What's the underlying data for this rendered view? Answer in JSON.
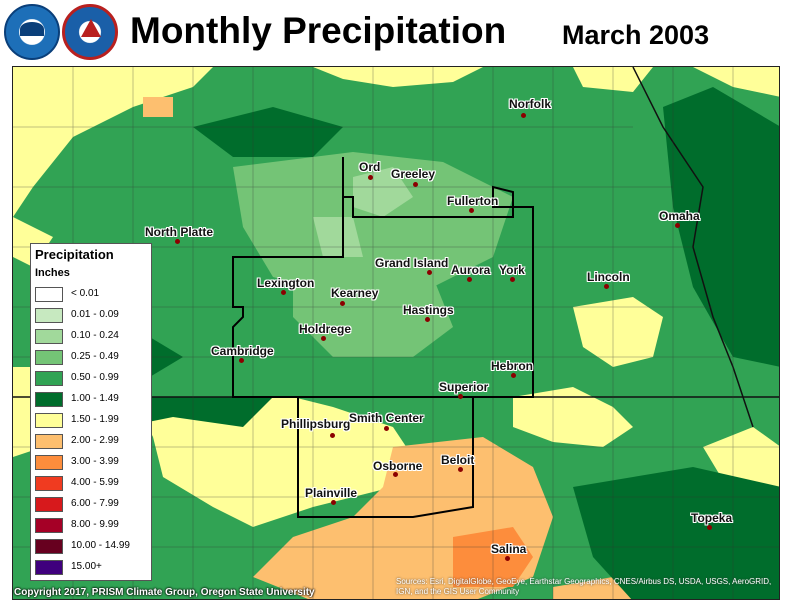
{
  "header": {
    "title": "Monthly Precipitation",
    "date": "March 2003"
  },
  "logos": [
    "noaa-logo",
    "nws-logo"
  ],
  "legend": {
    "title": "Precipitation",
    "unit": "Inches",
    "items": [
      {
        "label": "< 0.01",
        "color": "#ffffff"
      },
      {
        "label": "0.01 - 0.09",
        "color": "#c7e9c0"
      },
      {
        "label": "0.10 - 0.24",
        "color": "#a1d99b"
      },
      {
        "label": "0.25 - 0.49",
        "color": "#74c476"
      },
      {
        "label": "0.50 - 0.99",
        "color": "#31a354"
      },
      {
        "label": "1.00 - 1.49",
        "color": "#006d2c"
      },
      {
        "label": "1.50 - 1.99",
        "color": "#ffff99"
      },
      {
        "label": "2.00 - 2.99",
        "color": "#fdbf6f"
      },
      {
        "label": "3.00 - 3.99",
        "color": "#fd8d3c"
      },
      {
        "label": "4.00 - 5.99",
        "color": "#f03b20"
      },
      {
        "label": "6.00 - 7.99",
        "color": "#d7191c"
      },
      {
        "label": "8.00 - 9.99",
        "color": "#a50026"
      },
      {
        "label": "10.00 - 14.99",
        "color": "#67001f"
      },
      {
        "label": "15.00+",
        "color": "#3f007d"
      }
    ]
  },
  "cities": [
    {
      "name": "Norfolk"
    },
    {
      "name": "Ord"
    },
    {
      "name": "Greeley"
    },
    {
      "name": "Fullerton"
    },
    {
      "name": "North Platte"
    },
    {
      "name": "Omaha"
    },
    {
      "name": "Grand Island"
    },
    {
      "name": "Aurora"
    },
    {
      "name": "York"
    },
    {
      "name": "Lexington"
    },
    {
      "name": "Lincoln"
    },
    {
      "name": "Kearney"
    },
    {
      "name": "Hastings"
    },
    {
      "name": "Holdrege"
    },
    {
      "name": "Cambridge"
    },
    {
      "name": "Hebron"
    },
    {
      "name": "Superior"
    },
    {
      "name": "Phillipsburg"
    },
    {
      "name": "Smith Center"
    },
    {
      "name": "Osborne"
    },
    {
      "name": "Beloit"
    },
    {
      "name": "Plainville"
    },
    {
      "name": "Topeka"
    },
    {
      "name": "Salina"
    }
  ],
  "footer": {
    "copyright": "Copyright 2017, PRISM Climate Group, Oregon State University",
    "attribution": "Sources: Esri, DigitalGlobe, GeoEye, Earthstar Geographics, CNES/Airbus DS, USDA, USGS, AeroGRID, IGN, and the GIS User Community"
  }
}
